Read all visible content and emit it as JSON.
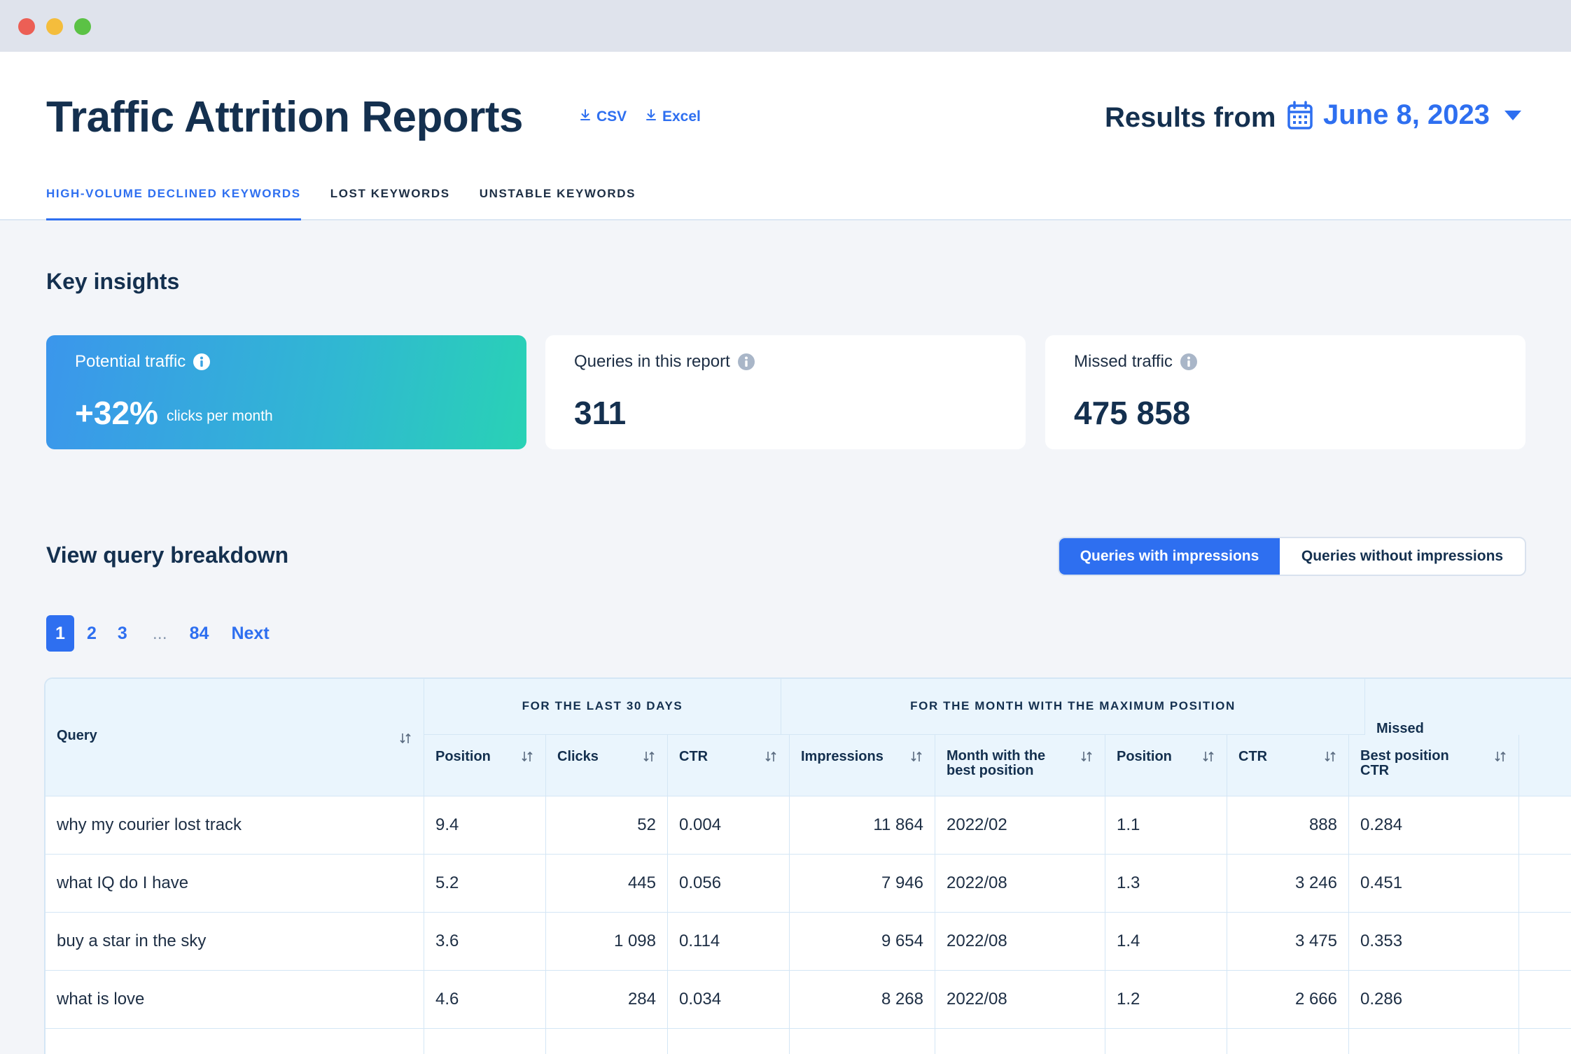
{
  "window": {
    "controls": [
      "close",
      "minimize",
      "maximize"
    ]
  },
  "header": {
    "title": "Traffic Attrition Reports",
    "downloads": {
      "csv": "CSV",
      "excel": "Excel"
    },
    "results_label": "Results from",
    "date": "June 8, 2023",
    "icons": {
      "download": "download-icon",
      "calendar": "calendar-icon",
      "caret": "caret-down-icon"
    }
  },
  "tabs": [
    {
      "label": "HIGH-VOLUME DECLINED KEYWORDS",
      "active": true
    },
    {
      "label": "LOST KEYWORDS",
      "active": false
    },
    {
      "label": "UNSTABLE KEYWORDS",
      "active": false
    }
  ],
  "insights": {
    "title": "Key insights",
    "cards": [
      {
        "label": "Potential traffic",
        "value": "+32%",
        "unit": "clicks per month"
      },
      {
        "label": "Queries in this report",
        "value": "311"
      },
      {
        "label": "Missed traffic",
        "value": "475 858"
      }
    ]
  },
  "breakdown": {
    "title": "View query breakdown",
    "toggle": {
      "with": "Queries with impressions",
      "without": "Queries without impressions",
      "selected": "with"
    }
  },
  "pagination": {
    "pages": [
      "1",
      "2",
      "3"
    ],
    "ellipsis": "...",
    "last": "84",
    "next": "Next",
    "current": "1"
  },
  "table": {
    "groups": {
      "last30": "FOR THE LAST 30 DAYS",
      "maxmonth": "FOR THE MONTH WITH THE MAXIMUM POSITION"
    },
    "columns": {
      "query": "Query",
      "position": "Position",
      "clicks": "Clicks",
      "ctr": "CTR",
      "impressions": "Impressions",
      "best_month": "Month with the best position",
      "best_position": "Position",
      "best_clicks": "CTR",
      "best_ctr": "Best position CTR",
      "missed": "Missed traffic"
    },
    "rows": [
      {
        "query": "why my courier lost track",
        "position": "9.4",
        "clicks": "52",
        "ctr": "0.004",
        "impressions": "11 864",
        "month": "2022/02",
        "best_position": "1.1",
        "best_clicks": "888",
        "best_ctr": "0.284"
      },
      {
        "query": "what IQ do I have",
        "position": "5.2",
        "clicks": "445",
        "ctr": "0.056",
        "impressions": "7 946",
        "month": "2022/08",
        "best_position": "1.3",
        "best_clicks": "3 246",
        "best_ctr": "0.451"
      },
      {
        "query": "buy a star in the sky",
        "position": "3.6",
        "clicks": "1 098",
        "ctr": "0.114",
        "impressions": "9 654",
        "month": "2022/08",
        "best_position": "1.4",
        "best_clicks": "3 475",
        "best_ctr": "0.353"
      },
      {
        "query": "what is love",
        "position": "4.6",
        "clicks": "284",
        "ctr": "0.034",
        "impressions": "8 268",
        "month": "2022/08",
        "best_position": "1.2",
        "best_clicks": "2 666",
        "best_ctr": "0.286"
      },
      {
        "query": "",
        "position": "",
        "clicks": "",
        "ctr": "",
        "impressions": "",
        "month": "",
        "best_position": "",
        "best_clicks": "",
        "best_ctr": ""
      }
    ]
  }
}
